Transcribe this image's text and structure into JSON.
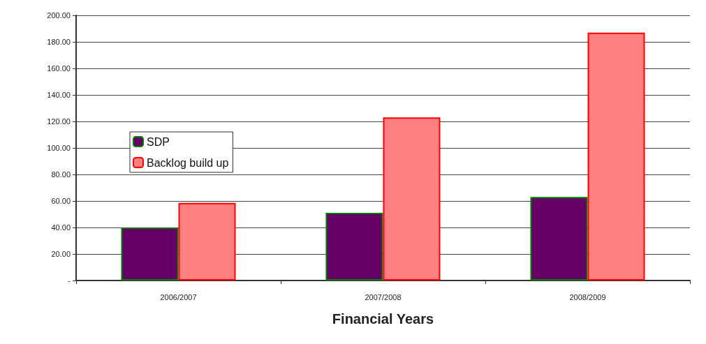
{
  "chart_data": {
    "type": "bar",
    "xlabel": "Financial Years",
    "categories": [
      "2006/2007",
      "2007/2008",
      "2008/2009"
    ],
    "series": [
      {
        "name": "SDP",
        "color": "#660066",
        "values": [
          40,
          51,
          63
        ]
      },
      {
        "name": "Backlog build up",
        "color": "#ff8080",
        "values": [
          58.5,
          123,
          187
        ]
      }
    ],
    "ylim": [
      0,
      200
    ],
    "yticks": [
      {
        "value": 0,
        "label": "-"
      },
      {
        "value": 20,
        "label": "20.00"
      },
      {
        "value": 40,
        "label": "40.00"
      },
      {
        "value": 60,
        "label": "60.00"
      },
      {
        "value": 80,
        "label": "80.00"
      },
      {
        "value": 100,
        "label": "100.00"
      },
      {
        "value": 120,
        "label": "120.00"
      },
      {
        "value": 140,
        "label": "140.00"
      },
      {
        "value": 160,
        "label": "160.00"
      },
      {
        "value": 180,
        "label": "180.00"
      },
      {
        "value": 200,
        "label": "200.00"
      }
    ],
    "grid": "y",
    "legend": "left"
  }
}
